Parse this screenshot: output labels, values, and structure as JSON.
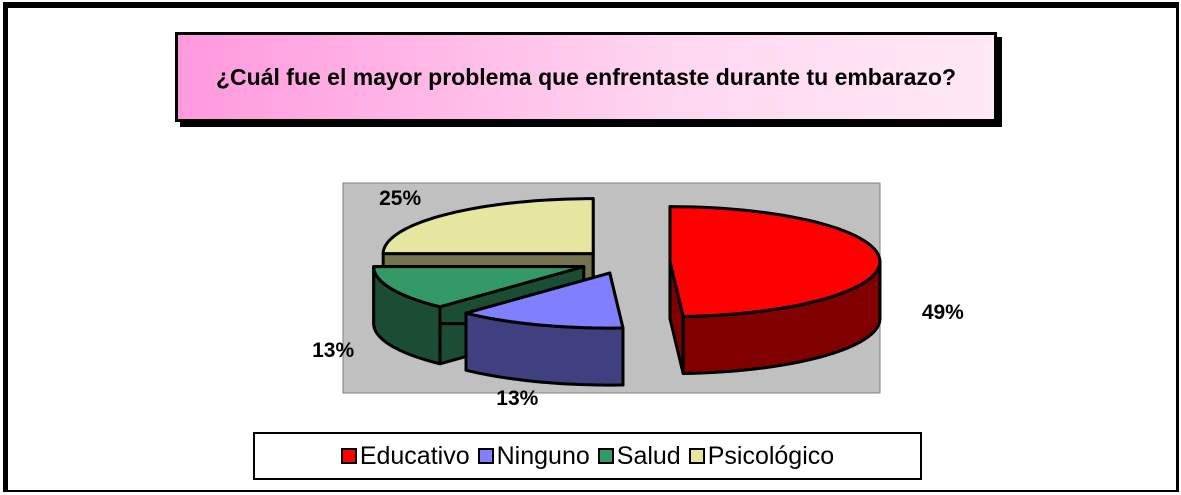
{
  "chart_data": {
    "type": "pie3d",
    "title": "¿Cuál fue el mayor problema que enfrentaste durante tu embarazo?",
    "categories": [
      "Educativo",
      "Ninguno",
      "Salud",
      "Psicológico"
    ],
    "values": [
      49,
      13,
      13,
      25
    ],
    "value_labels": [
      "49%",
      "13%",
      "13%",
      "25%"
    ],
    "colors": [
      "#ff0000",
      "#8080ff",
      "#339966",
      "#e6e6a0"
    ],
    "legend": "bottom"
  }
}
